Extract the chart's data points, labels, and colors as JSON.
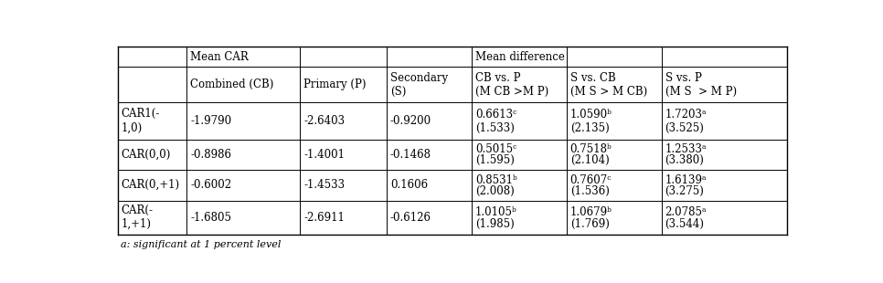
{
  "footnote": "a: significant at 1 percent level",
  "col_headers": [
    "",
    "Combined (CB)",
    "Primary (P)",
    "Secondary\n(S)",
    "CB vs. P\n(M CB >M P)",
    "S vs. CB\n(M S > M CB)",
    "S vs. P\n(M S  > M P)"
  ],
  "rows": [
    {
      "label": "CAR1(-\n1,0)",
      "values": [
        "-1.9790",
        "-2.6403",
        "-0.9200",
        "0.6613ᶜ",
        "1.0590ᵇ",
        "1.7203ᵃ"
      ],
      "sub_values": [
        "",
        "",
        "",
        "(1.533)",
        "(2.135)",
        "(3.525)"
      ]
    },
    {
      "label": "CAR(0,0)",
      "values": [
        "-0.8986",
        "-1.4001",
        "-0.1468",
        "0.5015ᶜ",
        "0.7518ᵇ",
        "1.2533ᵃ"
      ],
      "sub_values": [
        "",
        "",
        "",
        "(1.595)",
        "(2.104)",
        "(3.380)"
      ]
    },
    {
      "label": "CAR(0,+1)",
      "values": [
        "-0.6002",
        "-1.4533",
        "0.1606",
        "0.8531ᵇ",
        "0.7607ᶜ",
        "1.6139ᵃ"
      ],
      "sub_values": [
        "",
        "",
        "",
        "(2.008)",
        "(1.536)",
        "(3.275)"
      ]
    },
    {
      "label": "CAR(-\n1,+1)",
      "values": [
        "-1.6805",
        "-2.6911",
        "-0.6126",
        "1.0105ᵇ",
        "1.0679ᵇ",
        "2.0785ᵃ"
      ],
      "sub_values": [
        "",
        "",
        "",
        "(1.985)",
        "(1.769)",
        "(3.544)"
      ]
    }
  ],
  "background_color": "#ffffff",
  "font_size": 8.5
}
